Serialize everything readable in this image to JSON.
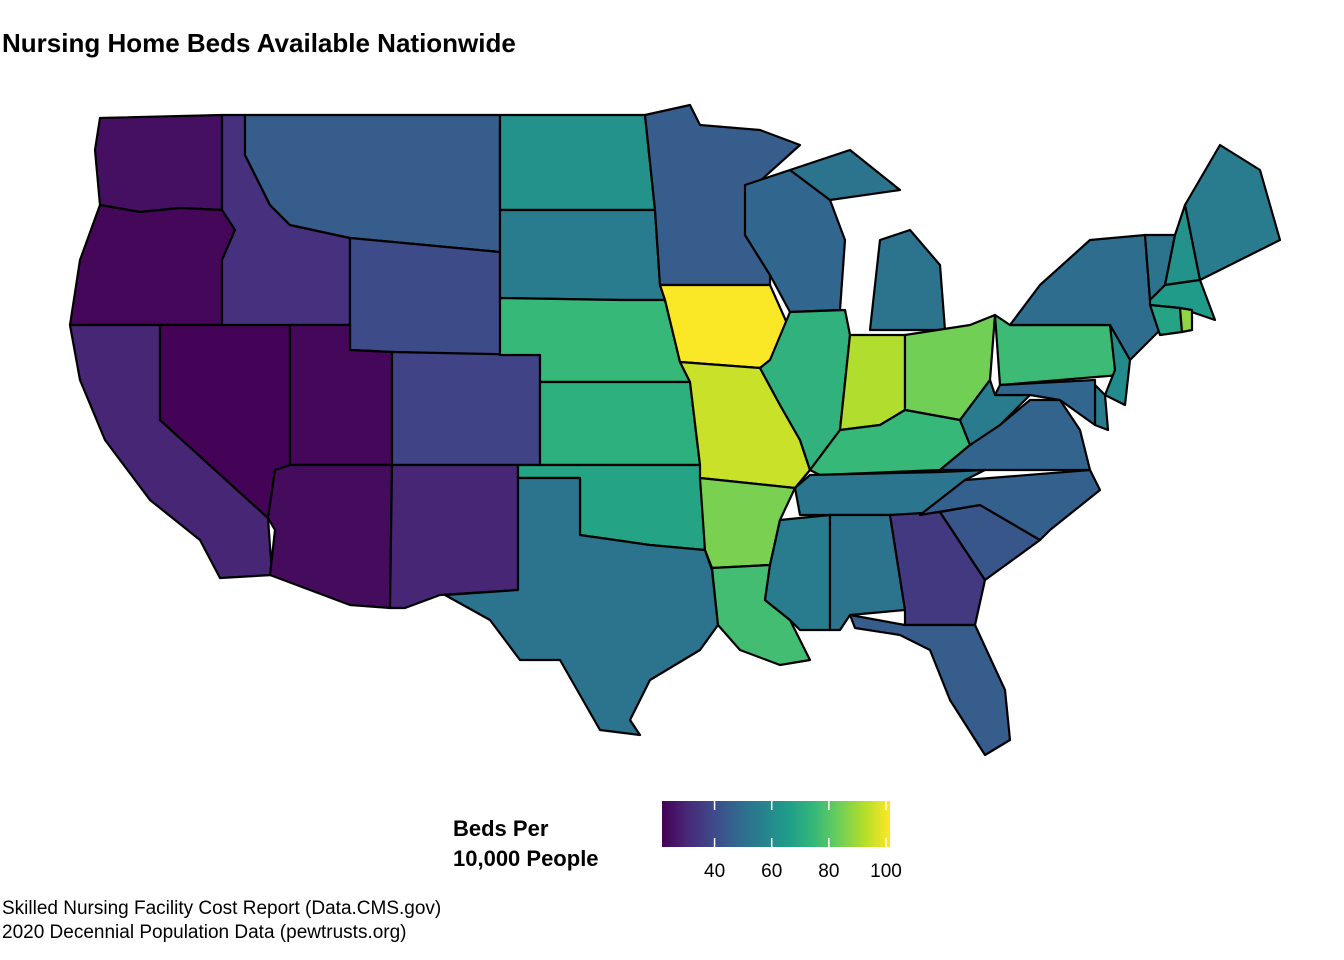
{
  "chart_data": {
    "type": "choropleth",
    "title": "Nursing Home Beds Available Nationwide",
    "legend_title": [
      "Beds Per",
      "10,000 People"
    ],
    "colormap": [
      "#440154",
      "#482878",
      "#3e4989",
      "#31688e",
      "#26828e",
      "#1f9e89",
      "#35b779",
      "#6ece58",
      "#b5de2b",
      "#fde725"
    ],
    "clim": [
      21.6,
      101.4
    ],
    "cticks": [
      40,
      60,
      80,
      100
    ],
    "values": [
      25,
      23,
      30,
      22,
      33,
      45,
      40,
      23,
      24,
      38,
      30,
      62,
      55,
      75,
      72,
      68,
      52,
      45,
      101,
      95,
      85,
      77,
      48,
      73,
      52,
      92,
      84,
      75,
      53,
      55,
      52,
      35,
      45,
      43,
      46,
      47,
      55,
      76,
      50,
      52,
      62,
      55,
      65,
      68,
      88,
      60,
      55,
      48
    ],
    "caption": [
      "Skilled Nursing Facility Cost Report (Data.CMS.gov)",
      "2020 Decennial Population Data (pewtrusts.org)"
    ]
  }
}
